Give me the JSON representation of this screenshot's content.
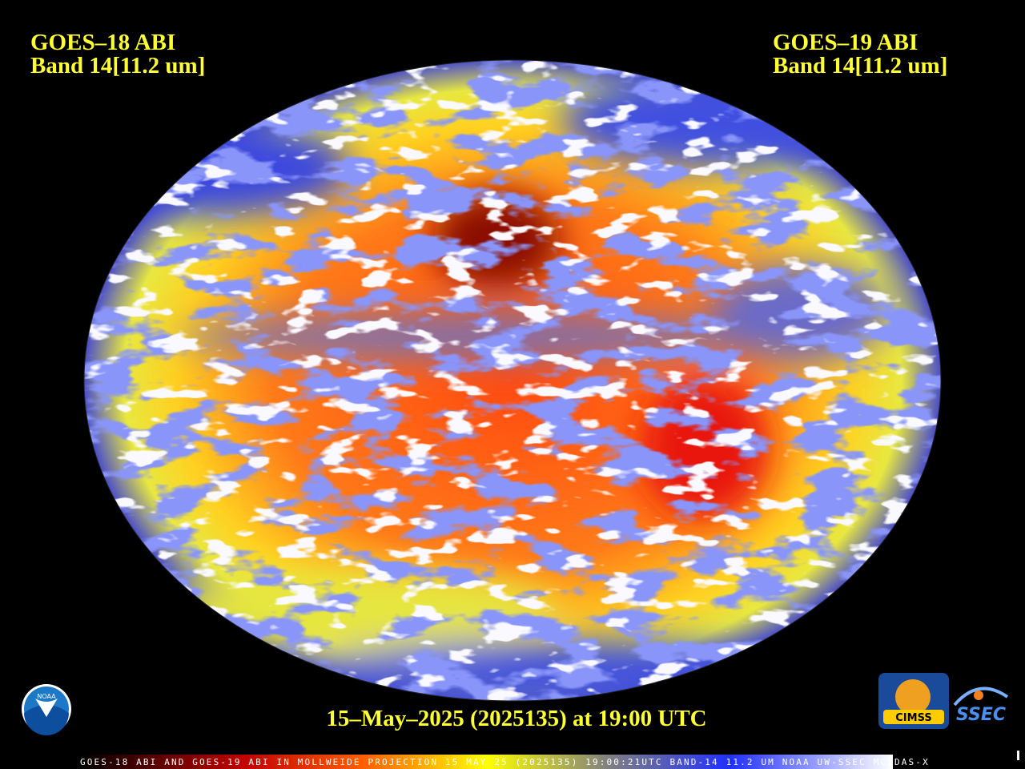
{
  "header": {
    "left_title": "GOES–18 ABI",
    "left_band": "Band 14[11.2 um]",
    "right_title": "GOES–19 ABI",
    "right_band": "Band 14[11.2 um]"
  },
  "timestamp": "15–May–2025 (2025135) at 19:00 UTC",
  "footer": "GOES-18 ABI AND GOES-19 ABI IN MOLLWEIDE PROJECTION 15 MAY 25 (2025135) 19:00:21UTC BAND-14 11.2 UM NOAA UW-SSEC MCIDAS-X",
  "logos": {
    "noaa": "NOAA",
    "cimss": "CIMSS",
    "ssec": "SSEC"
  }
}
